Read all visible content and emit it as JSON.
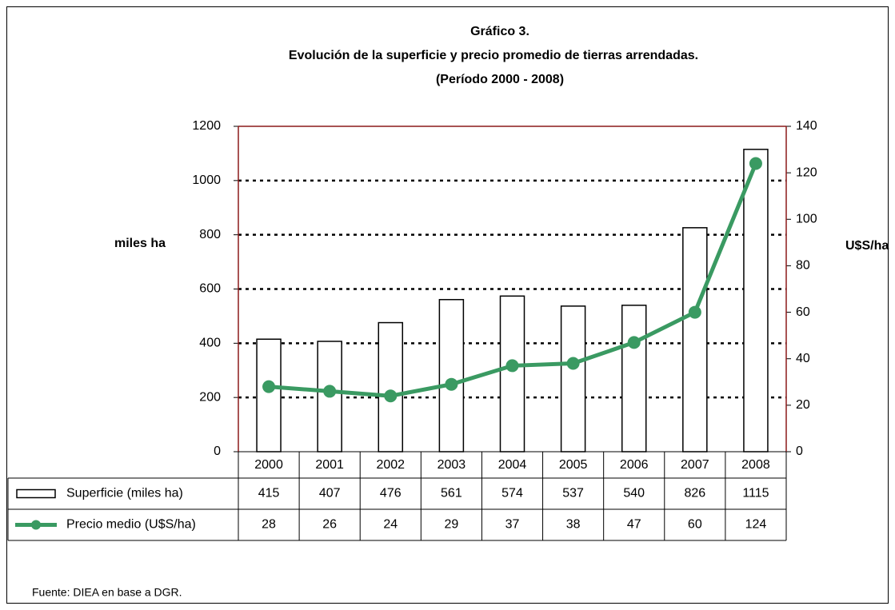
{
  "chart_data": {
    "type": "bar",
    "title": "Gráfico 3.",
    "subtitle": [
      "Evolución de la superficie y precio promedio de tierras arrendadas.",
      "(Período 2000 - 2008)"
    ],
    "categories": [
      "2000",
      "2001",
      "2002",
      "2003",
      "2004",
      "2005",
      "2006",
      "2007",
      "2008"
    ],
    "series": [
      {
        "name": "Superficie (miles ha)",
        "type": "bar",
        "color": "#ffffff",
        "values": [
          415,
          407,
          476,
          561,
          574,
          537,
          540,
          826,
          1115
        ]
      },
      {
        "name": "Precio medio (U$S/ha)",
        "type": "line",
        "color": "#3a9a62",
        "axis": "y2",
        "values": [
          28,
          26,
          24,
          29,
          37,
          38,
          47,
          60,
          124
        ]
      }
    ],
    "ylabel": "miles ha",
    "y2label": "U$S/ha",
    "ylim": [
      0,
      1200
    ],
    "yticks": [
      0,
      200,
      400,
      600,
      800,
      1000,
      1200
    ],
    "y2lim": [
      0,
      140
    ],
    "y2ticks": [
      0,
      20,
      40,
      60,
      80,
      100,
      120,
      140
    ],
    "grid": true,
    "data_table": true,
    "source": "Fuente: DIEA en base a DGR."
  }
}
